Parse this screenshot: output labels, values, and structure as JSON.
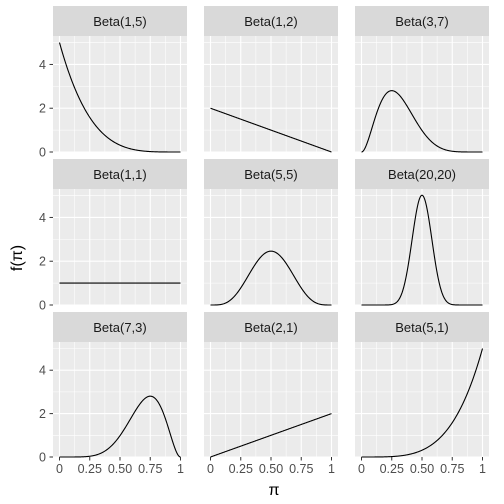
{
  "chart_data": {
    "type": "line",
    "facet_layout": "3x3 grid, shared axes",
    "xlabel": "π",
    "ylabel": "f(π)",
    "xlim": [
      0,
      1
    ],
    "ylim": [
      0,
      5.3
    ],
    "x_ticks": [
      0,
      0.25,
      0.5,
      0.75,
      1
    ],
    "x_tick_labels": [
      "0",
      "0.25",
      "0.50",
      "0.75",
      "1"
    ],
    "y_ticks": [
      0,
      2,
      4
    ],
    "y_tick_labels": [
      "0",
      "2",
      "4"
    ],
    "grid": true,
    "colors": {
      "panel_bg": "#ebebeb",
      "grid": "#ffffff",
      "strip_bg": "#d9d9d9",
      "line": "#000000"
    },
    "panels": [
      {
        "label": "Beta(1,5)",
        "a": 1,
        "b": 5
      },
      {
        "label": "Beta(1,2)",
        "a": 1,
        "b": 2
      },
      {
        "label": "Beta(3,7)",
        "a": 3,
        "b": 7
      },
      {
        "label": "Beta(1,1)",
        "a": 1,
        "b": 1
      },
      {
        "label": "Beta(5,5)",
        "a": 5,
        "b": 5
      },
      {
        "label": "Beta(20,20)",
        "a": 20,
        "b": 20
      },
      {
        "label": "Beta(7,3)",
        "a": 7,
        "b": 3
      },
      {
        "label": "Beta(2,1)",
        "a": 2,
        "b": 1
      },
      {
        "label": "Beta(5,1)",
        "a": 5,
        "b": 1
      }
    ]
  }
}
